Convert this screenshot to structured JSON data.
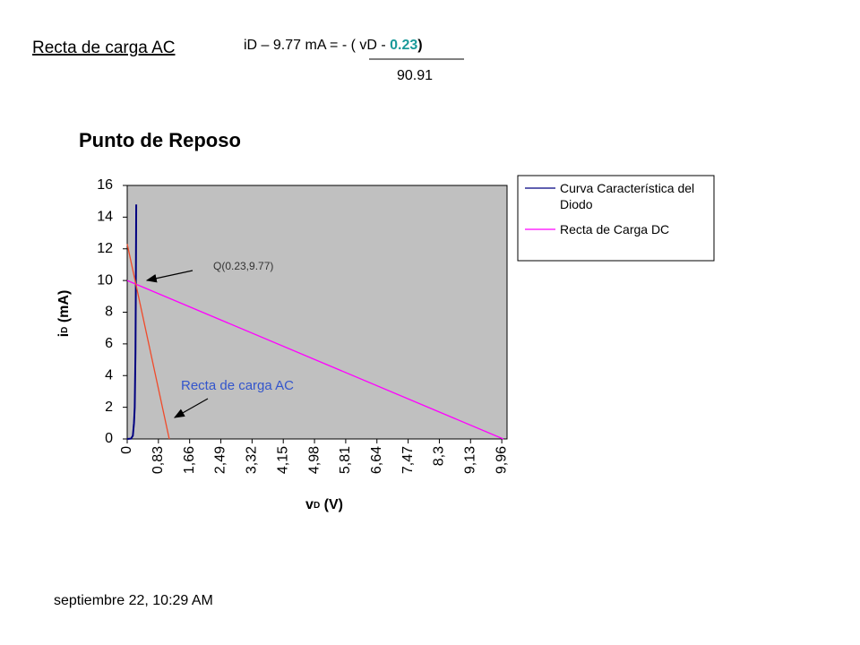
{
  "header": {
    "title": "Recta de carga AC",
    "equation": {
      "left": "iD – 9.77 mA = - ( vD  - ",
      "highlight": "0.23",
      "close": ")",
      "denominator": "90.91"
    }
  },
  "chart_data": {
    "type": "line",
    "title": "Punto de Reposo",
    "ylabel": {
      "main": "i",
      "sub": "D",
      "unit": " (mA)"
    },
    "xlabel": {
      "main": "v",
      "sub": "D",
      "unit": " (V)"
    },
    "xlim": [
      0,
      10.1
    ],
    "ylim": [
      0,
      16
    ],
    "yticks": [
      0,
      2,
      4,
      6,
      8,
      10,
      12,
      14,
      16
    ],
    "xticks": [
      0,
      {
        "value": 0.83,
        "label": "0,83"
      },
      {
        "value": 1.66,
        "label": "1,66"
      },
      {
        "value": 2.49,
        "label": "2,49"
      },
      {
        "value": 3.32,
        "label": "3,32"
      },
      {
        "value": 4.15,
        "label": "4,15"
      },
      {
        "value": 4.98,
        "label": "4,98"
      },
      {
        "value": 5.81,
        "label": "5,81"
      },
      {
        "value": 6.64,
        "label": "6,64"
      },
      {
        "value": 7.47,
        "label": "7,47"
      },
      {
        "value": 8.3,
        "label": "8,3"
      },
      {
        "value": 9.13,
        "label": "9,13"
      },
      {
        "value": 9.96,
        "label": "9,96"
      }
    ],
    "grid": false,
    "legend": "right",
    "series": [
      {
        "name": "Curva Característica del Diodo",
        "color": "#000080",
        "x": [
          0,
          0.1,
          0.15,
          0.18,
          0.2,
          0.22,
          0.23,
          0.24
        ],
        "values": [
          0,
          0.02,
          0.2,
          1,
          2,
          5.5,
          9.77,
          14.8
        ]
      },
      {
        "name": "Recta de Carga DC",
        "color": "#ff00ff",
        "x": [
          0,
          10
        ],
        "values": [
          10,
          0
        ]
      },
      {
        "color": "#f04a2a",
        "x": [
          0,
          1.118
        ],
        "values": [
          12.3,
          0
        ]
      }
    ],
    "annotations": [
      "Q(0.23,9.77)",
      "Recta de carga AC"
    ]
  },
  "footer": "septiembre 22, 10:29 AM"
}
